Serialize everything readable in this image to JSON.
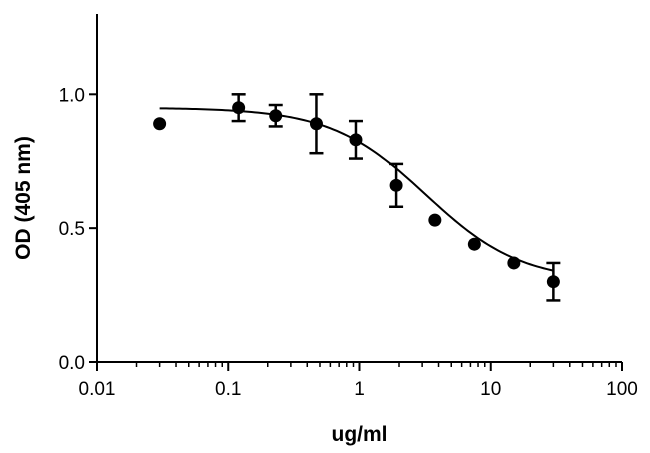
{
  "chart_data": {
    "type": "scatter",
    "title": "",
    "xlabel": "ug/ml",
    "ylabel": "OD (405 nm)",
    "x_scale": "log",
    "xlim": [
      0.01,
      100
    ],
    "ylim": [
      0,
      1.3
    ],
    "x_ticks": [
      0.01,
      0.1,
      1,
      10,
      100
    ],
    "x_tick_labels": [
      "0.01",
      "0.1",
      "1",
      "10",
      "100"
    ],
    "y_ticks": [
      0,
      0.5,
      1
    ],
    "y_tick_labels": [
      "0.0",
      "0.5",
      "1.0"
    ],
    "grid": false,
    "legend": "none",
    "series": [
      {
        "x": [
          0.03,
          0.12,
          0.23,
          0.47,
          0.94,
          1.9,
          3.75,
          7.5,
          15,
          30
        ],
        "y": [
          0.89,
          0.95,
          0.92,
          0.89,
          0.83,
          0.66,
          0.53,
          0.44,
          0.37,
          0.3
        ],
        "error": [
          0,
          0.05,
          0.04,
          0.11,
          0.07,
          0.08,
          0,
          0,
          0,
          0.07
        ],
        "fit": {
          "model": "sigmoidal dose-response",
          "top": 0.95,
          "bottom": 0.3,
          "ec50": 3.2,
          "hill": 1.2,
          "x_range": [
            0.03,
            30
          ]
        }
      }
    ],
    "colors": {
      "marker": "#000000",
      "line": "#000000",
      "axis": "#000000"
    }
  }
}
